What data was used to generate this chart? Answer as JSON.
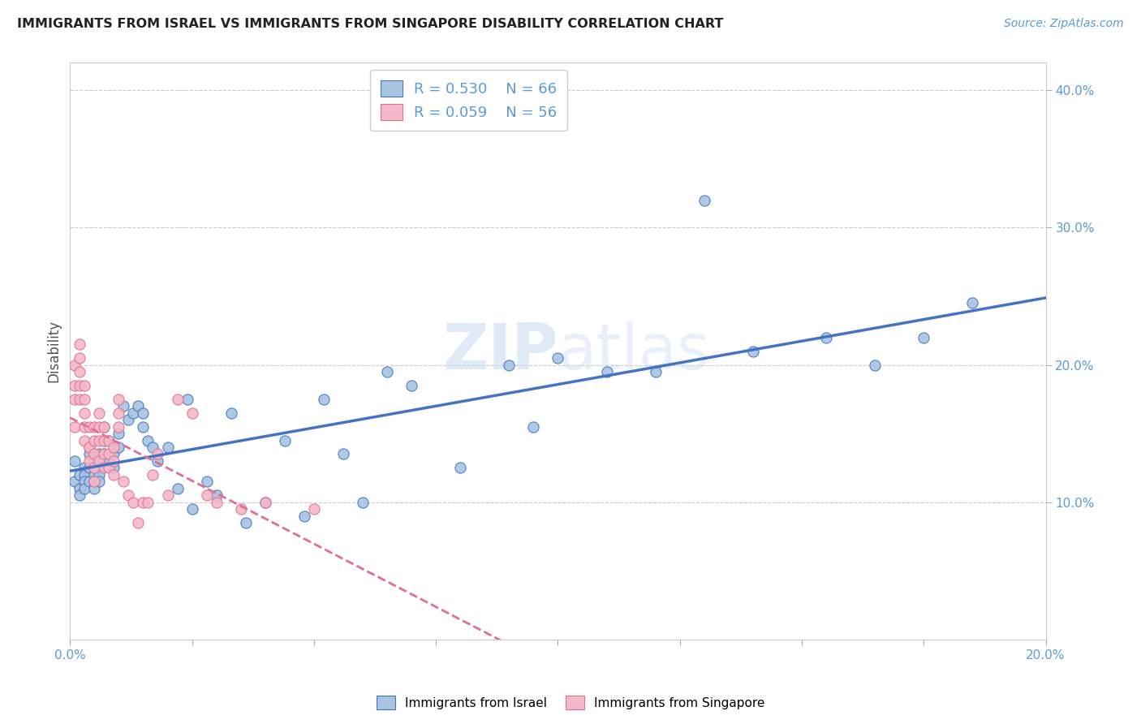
{
  "title": "IMMIGRANTS FROM ISRAEL VS IMMIGRANTS FROM SINGAPORE DISABILITY CORRELATION CHART",
  "source": "Source: ZipAtlas.com",
  "ylabel": "Disability",
  "xlim": [
    0.0,
    0.2
  ],
  "ylim": [
    0.0,
    0.42
  ],
  "yticks": [
    0.1,
    0.2,
    0.3,
    0.4
  ],
  "ytick_labels": [
    "10.0%",
    "20.0%",
    "30.0%",
    "40.0%"
  ],
  "xticks": [
    0.0,
    0.025,
    0.05,
    0.075,
    0.1,
    0.125,
    0.15,
    0.175,
    0.2
  ],
  "israel_R": 0.53,
  "israel_N": 66,
  "singapore_R": 0.059,
  "singapore_N": 56,
  "israel_color": "#a8c4e0",
  "singapore_color": "#f4b8c8",
  "israel_line_color": "#4472c4",
  "singapore_line_color": "#e07090",
  "watermark_zip": "ZIP",
  "watermark_atlas": "atlas",
  "israel_x": [
    0.001,
    0.001,
    0.002,
    0.002,
    0.002,
    0.003,
    0.003,
    0.003,
    0.003,
    0.004,
    0.004,
    0.004,
    0.005,
    0.005,
    0.005,
    0.005,
    0.006,
    0.006,
    0.006,
    0.006,
    0.007,
    0.007,
    0.007,
    0.008,
    0.008,
    0.009,
    0.009,
    0.01,
    0.01,
    0.011,
    0.012,
    0.013,
    0.014,
    0.015,
    0.015,
    0.016,
    0.017,
    0.018,
    0.02,
    0.022,
    0.024,
    0.025,
    0.028,
    0.03,
    0.033,
    0.036,
    0.04,
    0.044,
    0.048,
    0.052,
    0.056,
    0.06,
    0.065,
    0.07,
    0.08,
    0.09,
    0.095,
    0.1,
    0.11,
    0.12,
    0.13,
    0.14,
    0.155,
    0.165,
    0.175,
    0.185
  ],
  "israel_y": [
    0.115,
    0.13,
    0.12,
    0.11,
    0.105,
    0.125,
    0.12,
    0.115,
    0.11,
    0.135,
    0.125,
    0.115,
    0.13,
    0.12,
    0.115,
    0.11,
    0.135,
    0.125,
    0.12,
    0.115,
    0.155,
    0.145,
    0.135,
    0.145,
    0.13,
    0.135,
    0.125,
    0.15,
    0.14,
    0.17,
    0.16,
    0.165,
    0.17,
    0.165,
    0.155,
    0.145,
    0.14,
    0.13,
    0.14,
    0.11,
    0.175,
    0.095,
    0.115,
    0.105,
    0.165,
    0.085,
    0.1,
    0.145,
    0.09,
    0.175,
    0.135,
    0.1,
    0.195,
    0.185,
    0.125,
    0.2,
    0.155,
    0.205,
    0.195,
    0.195,
    0.32,
    0.21,
    0.22,
    0.2,
    0.22,
    0.245
  ],
  "singapore_x": [
    0.001,
    0.001,
    0.001,
    0.001,
    0.002,
    0.002,
    0.002,
    0.002,
    0.002,
    0.003,
    0.003,
    0.003,
    0.003,
    0.003,
    0.004,
    0.004,
    0.004,
    0.004,
    0.005,
    0.005,
    0.005,
    0.005,
    0.005,
    0.006,
    0.006,
    0.006,
    0.006,
    0.007,
    0.007,
    0.007,
    0.007,
    0.008,
    0.008,
    0.008,
    0.009,
    0.009,
    0.009,
    0.01,
    0.01,
    0.01,
    0.011,
    0.012,
    0.013,
    0.014,
    0.015,
    0.016,
    0.017,
    0.018,
    0.02,
    0.022,
    0.025,
    0.028,
    0.03,
    0.035,
    0.04,
    0.05
  ],
  "singapore_y": [
    0.155,
    0.175,
    0.185,
    0.2,
    0.175,
    0.185,
    0.195,
    0.205,
    0.215,
    0.175,
    0.185,
    0.165,
    0.155,
    0.145,
    0.14,
    0.155,
    0.14,
    0.13,
    0.155,
    0.145,
    0.135,
    0.125,
    0.115,
    0.165,
    0.155,
    0.145,
    0.13,
    0.155,
    0.145,
    0.135,
    0.125,
    0.145,
    0.135,
    0.125,
    0.14,
    0.13,
    0.12,
    0.175,
    0.165,
    0.155,
    0.115,
    0.105,
    0.1,
    0.085,
    0.1,
    0.1,
    0.12,
    0.135,
    0.105,
    0.175,
    0.165,
    0.105,
    0.1,
    0.095,
    0.1,
    0.095
  ]
}
